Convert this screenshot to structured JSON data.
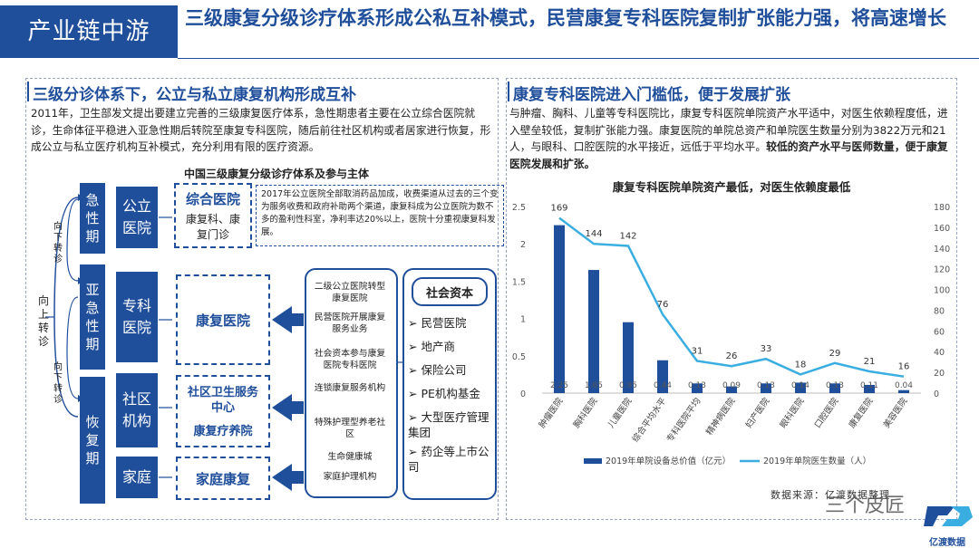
{
  "header": {
    "tag": "产业链中游",
    "title": "三级康复分级诊疗体系形成公私互补模式，民营康复专科医院复制扩张能力强，将高速增长"
  },
  "left": {
    "section_title": "三级分诊体系下，公立与私立康复机构形成互补",
    "paragraph": "2011年，卫生部发文提出要建立完善的三级康复医疗体系，急性期患者主要在公立综合医院就诊，生命体征平稳进入亚急性期后转院至康复专科医院，随后前往社区机构或者居家进行恢复，形成公立与私立医疗机构互补模式，充分利用有限的医疗资源。",
    "diagram_title": "中国三级康复分级诊疗体系及参与主体",
    "up_label": "向上转诊",
    "down_label_1": "向下转诊",
    "down_label_2": "向下转诊",
    "stages": [
      "急性期",
      "亚急性期",
      "恢复期"
    ],
    "facilities": [
      "公立医院",
      "专科医院",
      "社区机构",
      "家庭"
    ],
    "comprehensive": {
      "title": "综合医院",
      "items": "康复科、康复门诊"
    },
    "note": "2017年公立医院全部取消药品加成，收费渠道从过去的三个变为服务收费和政府补助两个渠道，康复科成为公立医院为数不多的盈利性科室，净利率达20%以上，医院十分重视康复科发展。",
    "rehab_hospital": "康复医院",
    "community_center": "社区卫生服务中心",
    "nursing_home": "康复疗养院",
    "home_rehab": "家庭康复",
    "sources": [
      "二级公立医院转型康复医院",
      "民营医院开展康复服务业务",
      "社会资本参与康复医院专科医院",
      "连锁康复服务机构",
      "特殊护理型养老社区",
      "生命健康城",
      "家庭护理机构"
    ],
    "social_capital": {
      "title": "社会资本",
      "items": [
        "民营医院",
        "地产商",
        "保险公司",
        "PE机构基金",
        "大型医疗管理集团",
        "药企等上市公司"
      ]
    }
  },
  "right": {
    "section_title": "康复专科医院进入门槛低，便于发展扩张",
    "paragraph": "与肿瘤、胸科、儿童等专科医院比，康复专科医院单院资产水平适中，对医生依赖程度低，进入壁垒较低，复制扩张能力强。康复医院的单院总资产和单院医生数量分别为3822万元和21人，与眼科、口腔医院的水平接近，远低于平均水平。",
    "paragraph_bold": "较低的资产水平与医师数量，便于康复医院发展和扩张。",
    "source_note": "数据来源：亿渡数据整理",
    "watermark": "三个皮匠",
    "logo_text": "亿渡数据"
  },
  "chart_data": {
    "type": "bar",
    "title": "康复专科医院单院资产最低，对医生依赖度最低",
    "categories": [
      "肿瘤医院",
      "胸科医院",
      "儿童医院",
      "综合平均水平",
      "专科医院平均",
      "精神病医院",
      "妇产医院",
      "眼科医院",
      "口腔医院",
      "康复医院",
      "美容医院"
    ],
    "series": [
      {
        "name": "2019年单院设备总价值（亿元）",
        "type": "bar",
        "axis": "left",
        "color": "#1f4e9a",
        "values": [
          2.25,
          1.65,
          0.95,
          0.44,
          0.13,
          0.09,
          0.13,
          0.14,
          0.13,
          0.11,
          0.04
        ],
        "labels": [
          "2.25",
          "1.65",
          "0.95",
          "0.44",
          "0.13",
          "0.09",
          "0.13",
          "0.14",
          "0.13",
          "0.11",
          "0.04"
        ]
      },
      {
        "name": "2019年单院医生数量（人）",
        "type": "line",
        "axis": "right",
        "color": "#3aaee0",
        "values": [
          169,
          144,
          142,
          76,
          31,
          26,
          33,
          18,
          29,
          21,
          16
        ],
        "labels": [
          "169",
          "144",
          "142",
          "76",
          "31",
          "26",
          "33",
          "18",
          "29",
          "21",
          "16"
        ]
      }
    ],
    "y_left": {
      "min": 0,
      "max": 2.5,
      "ticks": [
        "0",
        "0.5",
        "1",
        "1.5",
        "2",
        "2.5"
      ]
    },
    "y_right": {
      "min": 0,
      "max": 180,
      "ticks": [
        "0",
        "20",
        "40",
        "60",
        "80",
        "100",
        "120",
        "140",
        "160",
        "180"
      ]
    },
    "grid": false,
    "legend": "bottom"
  }
}
